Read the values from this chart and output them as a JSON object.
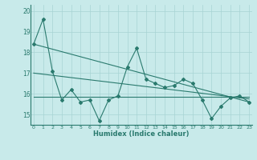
{
  "x": [
    0,
    1,
    2,
    3,
    4,
    5,
    6,
    7,
    8,
    9,
    10,
    11,
    12,
    13,
    14,
    15,
    16,
    17,
    18,
    19,
    20,
    21,
    22,
    23
  ],
  "y_line": [
    18.4,
    19.6,
    17.1,
    15.7,
    16.2,
    15.6,
    15.7,
    14.7,
    15.7,
    15.9,
    17.3,
    18.2,
    16.7,
    16.5,
    16.3,
    16.4,
    16.7,
    16.5,
    15.7,
    14.8,
    15.4,
    15.8,
    15.9,
    15.6
  ],
  "trend1_x": [
    0,
    23
  ],
  "trend1_y": [
    18.4,
    15.6
  ],
  "trend2_x": [
    0,
    23
  ],
  "trend2_y": [
    17.0,
    15.75
  ],
  "trend3_x": [
    0,
    23
  ],
  "trend3_y": [
    15.85,
    15.85
  ],
  "line_color": "#2a7a6e",
  "bg_color": "#c8eaea",
  "grid_color": "#a8d4d4",
  "xlabel": "Humidex (Indice chaleur)",
  "ylim": [
    14.5,
    20.3
  ],
  "xlim": [
    -0.3,
    23.3
  ],
  "yticks": [
    15,
    16,
    17,
    18,
    19,
    20
  ],
  "xticks": [
    0,
    1,
    2,
    3,
    4,
    5,
    6,
    7,
    8,
    9,
    10,
    11,
    12,
    13,
    14,
    15,
    16,
    17,
    18,
    19,
    20,
    21,
    22,
    23
  ]
}
